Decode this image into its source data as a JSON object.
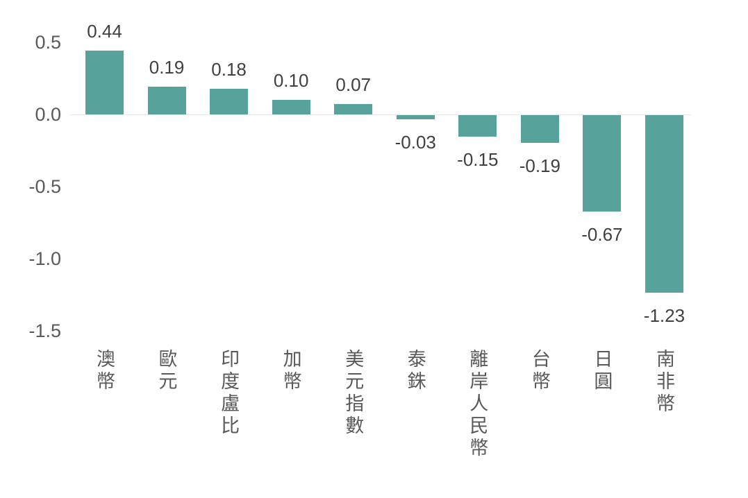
{
  "chart_data": {
    "type": "bar",
    "title": "",
    "xlabel": "",
    "ylabel": "",
    "categories": [
      "澳幣",
      "歐元",
      "印度盧比",
      "加幣",
      "美元指數",
      "泰銖",
      "離岸人民幣",
      "台幣",
      "日圓",
      "南非幣"
    ],
    "values": [
      0.44,
      0.19,
      0.18,
      0.1,
      0.07,
      -0.03,
      -0.15,
      -0.19,
      -0.67,
      -1.23
    ],
    "data_labels": [
      "0.44",
      "0.19",
      "0.18",
      "0.10",
      "0.07",
      "-0.03",
      "-0.15",
      "-0.19",
      "-0.67",
      "-1.23"
    ],
    "y_ticks": [
      0.5,
      0.0,
      -0.5,
      -1.0,
      -1.5
    ],
    "y_tick_labels": [
      "0.5",
      "0.0",
      "-0.5",
      "-1.0",
      "-1.5"
    ],
    "ylim": [
      -1.5,
      0.5
    ],
    "grid": false,
    "legend_position": "none",
    "colors": {
      "bar": "#57A39B",
      "data_label": "#404040",
      "axis_tick": "#595959",
      "category_label": "#595959",
      "zero_line": "#E7E7E7",
      "background": "#FFFFFF"
    }
  }
}
